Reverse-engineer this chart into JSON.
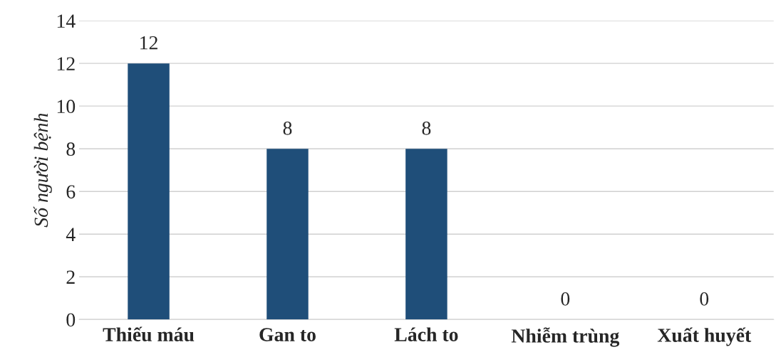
{
  "chart_data": {
    "type": "bar",
    "ylabel": "Số người bệnh",
    "categories": [
      "Thiếu máu",
      "Gan to",
      "Lách to",
      "Nhiễm trùng",
      "Xuất huyết"
    ],
    "values": [
      12,
      8,
      8,
      0,
      0
    ],
    "color": "#1f4e79",
    "ylim": [
      0,
      14
    ],
    "yticks": [
      0,
      2,
      4,
      6,
      8,
      10,
      12,
      14
    ],
    "grid": "y",
    "data_labels": true
  }
}
